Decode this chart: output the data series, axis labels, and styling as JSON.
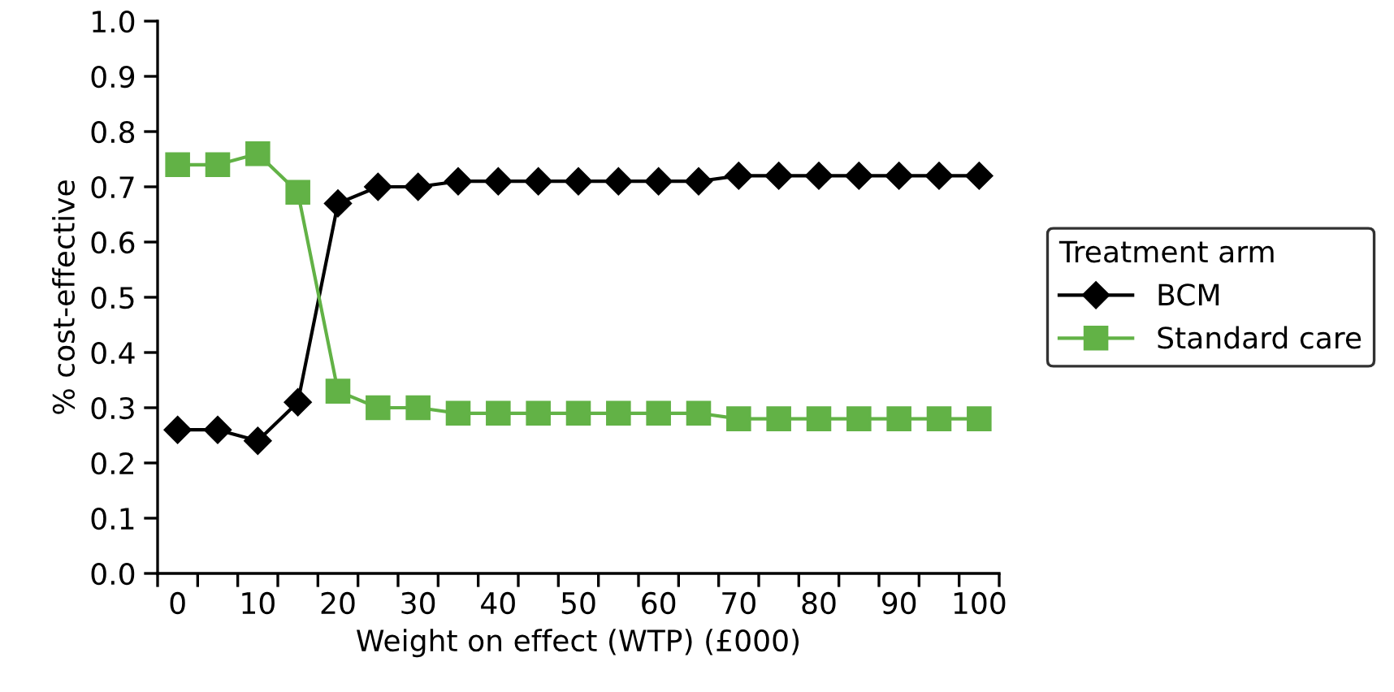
{
  "chart_data": {
    "type": "line",
    "xlabel": "Weight on effect (WTP) (£000)",
    "ylabel": "% cost-effective",
    "legend_title": "Treatment arm",
    "categories": [
      "0",
      null,
      "10",
      null,
      "20",
      null,
      "30",
      null,
      "40",
      null,
      "50",
      null,
      "60",
      null,
      "70",
      null,
      "80",
      null,
      "90",
      null,
      "100"
    ],
    "series": [
      {
        "name": "BCM",
        "color": "#000000",
        "marker": "diamond",
        "values": [
          0.26,
          0.26,
          0.24,
          0.31,
          0.67,
          0.7,
          0.7,
          0.71,
          0.71,
          0.71,
          0.71,
          0.71,
          0.71,
          0.71,
          0.72,
          0.72,
          0.72,
          0.72,
          0.72,
          0.72,
          0.72
        ]
      },
      {
        "name": "Standard care",
        "color": "#62b246",
        "marker": "square",
        "values": [
          0.74,
          0.74,
          0.76,
          0.69,
          0.33,
          0.3,
          0.3,
          0.29,
          0.29,
          0.29,
          0.29,
          0.29,
          0.29,
          0.29,
          0.28,
          0.28,
          0.28,
          0.28,
          0.28,
          0.28,
          0.28
        ]
      }
    ],
    "ylim": [
      0,
      1
    ],
    "yticks": [
      {
        "value": 0,
        "label": "0.0"
      },
      0.1,
      0.2,
      0.3,
      0.4,
      0.5,
      0.6,
      0.7,
      0.8,
      0.9,
      {
        "value": 1,
        "label": "1.0"
      }
    ],
    "grid": false,
    "legend": "right"
  }
}
